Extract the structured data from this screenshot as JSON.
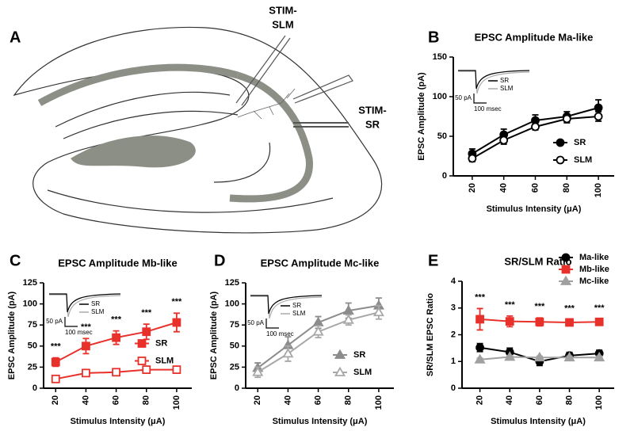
{
  "figure_diagram": {
    "panel": "A",
    "stim_slm": [
      "STIM-",
      "SLM"
    ],
    "stim_sr": [
      "STIM-",
      "SR"
    ]
  },
  "chart_data": [
    {
      "type": "line",
      "panel": "B",
      "title": "EPSC Amplitude Ma-like",
      "x_label": "Stimulus Intensity (μA)",
      "y_label": "EPSC Amplitude (pA)",
      "x": [
        20,
        40,
        60,
        80,
        100
      ],
      "xlim": [
        8,
        110
      ],
      "xticks": [
        20,
        40,
        60,
        80,
        100
      ],
      "ylim": [
        0,
        150
      ],
      "yticks": [
        0,
        50,
        100,
        150
      ],
      "legend": "lower right",
      "series": [
        {
          "name": "SR",
          "color": "#000000",
          "marker": "circle",
          "filled": true,
          "values": [
            28,
            52,
            70,
            75,
            86
          ],
          "errors": [
            6,
            7,
            7,
            6,
            10
          ]
        },
        {
          "name": "SLM",
          "color": "#000000",
          "marker": "circle",
          "filled": false,
          "values": [
            22,
            45,
            62,
            72,
            75
          ],
          "errors": [
            4,
            5,
            4,
            5,
            6
          ]
        }
      ],
      "inset": {
        "legend": [
          "SR",
          "SLM"
        ],
        "scale_y": "50 pA",
        "scale_x": "100 msec"
      }
    },
    {
      "type": "line",
      "panel": "C",
      "title": "EPSC Amplitude Mb-like",
      "x_label": "Stimulus Intensity (μA)",
      "y_label": "EPSC Amplitude (pA)",
      "x": [
        20,
        40,
        60,
        80,
        100
      ],
      "xlim": [
        12,
        110
      ],
      "xticks": [
        20,
        40,
        60,
        80,
        100
      ],
      "ylim": [
        0,
        125
      ],
      "yticks": [
        0,
        25,
        50,
        75,
        100,
        125
      ],
      "legend": "center right",
      "series": [
        {
          "name": "SR",
          "color": "#e8312a",
          "marker": "square",
          "filled": true,
          "values": [
            31,
            50,
            60,
            67,
            78
          ],
          "errors": [
            5,
            9,
            8,
            9,
            11
          ]
        },
        {
          "name": "SLM",
          "color": "#e8312a",
          "marker": "square",
          "filled": false,
          "values": [
            11,
            18,
            19,
            22,
            22
          ],
          "errors": [
            2,
            2,
            2,
            3,
            3
          ]
        }
      ],
      "annotations": [
        {
          "x": 20,
          "label": "***"
        },
        {
          "x": 40,
          "label": "***"
        },
        {
          "x": 60,
          "label": "***"
        },
        {
          "x": 80,
          "label": "***"
        },
        {
          "x": 100,
          "label": "***"
        }
      ],
      "inset": {
        "legend": [
          "SR",
          "SLM"
        ],
        "scale_y": "50 pA",
        "scale_x": "100 msec"
      }
    },
    {
      "type": "line",
      "panel": "D",
      "title": "EPSC Amplitude Mc-like",
      "x_label": "Stimulus Intensity (μA)",
      "y_label": "EPSC Amplitude (pA)",
      "x": [
        20,
        40,
        60,
        80,
        100
      ],
      "xlim": [
        12,
        110
      ],
      "xticks": [
        20,
        40,
        60,
        80,
        100
      ],
      "ylim": [
        0,
        125
      ],
      "yticks": [
        0,
        25,
        50,
        75,
        100,
        125
      ],
      "legend": "lower right",
      "series": [
        {
          "name": "SR",
          "color": "#8c8c8c",
          "marker": "triangle",
          "filled": true,
          "values": [
            24,
            51,
            78,
            92,
            98
          ],
          "errors": [
            6,
            10,
            7,
            9,
            9
          ]
        },
        {
          "name": "SLM",
          "color": "#a8a8a8",
          "marker": "triangle",
          "filled": false,
          "values": [
            19,
            41,
            67,
            81,
            90
          ],
          "errors": [
            6,
            9,
            7,
            6,
            8
          ]
        }
      ],
      "inset": {
        "legend": [
          "SR",
          "SLM"
        ],
        "scale_y": "50 pA",
        "scale_x": "100 msec"
      }
    },
    {
      "type": "line",
      "panel": "E",
      "title": "SR/SLM Ratio",
      "x_label": "Stimulus Intensity (μA)",
      "y_label": "SR/SLM EPSC Ratio",
      "x": [
        20,
        40,
        60,
        80,
        100
      ],
      "xlim": [
        8,
        110
      ],
      "xticks": [
        20,
        40,
        60,
        80,
        100
      ],
      "ylim": [
        0,
        4
      ],
      "yticks": [
        0,
        1,
        2,
        3,
        4
      ],
      "legend": "upper right",
      "series": [
        {
          "name": "Ma-like",
          "color": "#000000",
          "marker": "circle",
          "filled": true,
          "values": [
            1.52,
            1.35,
            1.0,
            1.22,
            1.3
          ],
          "errors": [
            0.15,
            0.15,
            0.15,
            0.12,
            0.12
          ]
        },
        {
          "name": "Mb-like",
          "color": "#e8312a",
          "marker": "square",
          "filled": true,
          "values": [
            2.58,
            2.5,
            2.48,
            2.46,
            2.48
          ],
          "errors": [
            0.4,
            0.2,
            0.15,
            0.1,
            0.1
          ]
        },
        {
          "name": "Mc-like",
          "color": "#a0a0a0",
          "marker": "triangle",
          "filled": true,
          "values": [
            1.07,
            1.17,
            1.15,
            1.15,
            1.15
          ],
          "errors": [
            0.05,
            0.05,
            0.05,
            0.05,
            0.05
          ]
        }
      ],
      "annotations": [
        {
          "x": 20,
          "label": "***"
        },
        {
          "x": 40,
          "label": "***"
        },
        {
          "x": 60,
          "label": "***"
        },
        {
          "x": 80,
          "label": "***"
        },
        {
          "x": 100,
          "label": "***"
        }
      ]
    }
  ]
}
